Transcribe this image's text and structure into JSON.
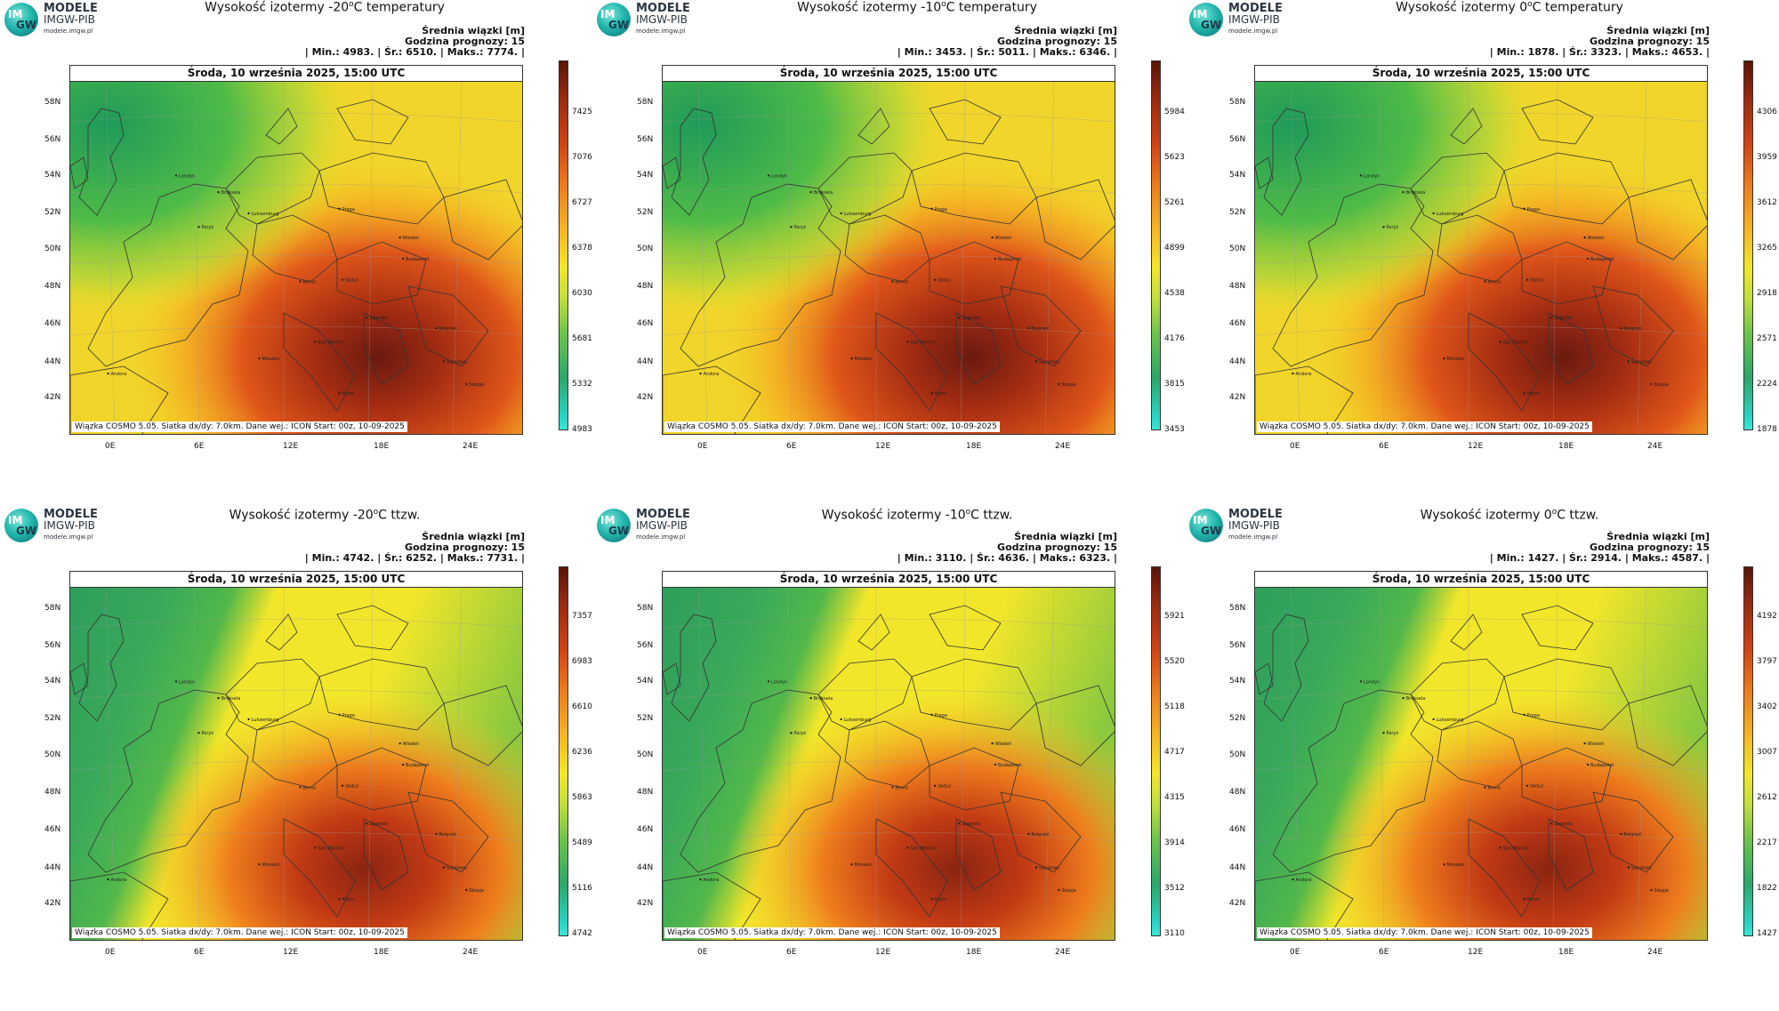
{
  "logo": {
    "l1": "IM",
    "l2": "GW",
    "t1": "MODELE",
    "t2": "IMGW-PIB",
    "t3": "modele.imgw.pl"
  },
  "common": {
    "date": "Środa, 10 września 2025, 15:00 UTC",
    "note": "Wiązka COSMO 5.05. Siatka dx/dy: 7.0km. Dane wej.: ICON Start: 00z, 10-09-2025",
    "info1": "Średnia wiązki [m]",
    "info2": "Godzina prognozy: 15",
    "lats": [
      "58N",
      "56N",
      "54N",
      "52N",
      "50N",
      "48N",
      "46N",
      "44N",
      "42N"
    ],
    "lons": [
      "0E",
      "6E",
      "12E",
      "18E",
      "24E"
    ]
  },
  "panels": [
    {
      "title_pre": "Wysokość izotermy -20",
      "title_sup": "o",
      "title_post": "C temperatury",
      "stats": "| Min.:    4983. | Śr.:    6510. | Maks.:    7774. |",
      "ticks": [
        "7425",
        "7076",
        "6727",
        "6378",
        "6030",
        "5681",
        "5332",
        "4983"
      ],
      "field_type": "warm-east"
    },
    {
      "title_pre": "Wysokość izotermy -10",
      "title_sup": "o",
      "title_post": "C temperatury",
      "stats": "| Min.:    3453. | Śr.:    5011. | Maks.:    6346. |",
      "ticks": [
        "5984",
        "5623",
        "5261",
        "4899",
        "4538",
        "4176",
        "3815",
        "3453"
      ],
      "field_type": "warm-east"
    },
    {
      "title_pre": "Wysokość izotermy 0",
      "title_sup": "o",
      "title_post": "C temperatury",
      "stats": "| Min.:    1878. | Śr.:    3323. | Maks.:    4653. |",
      "ticks": [
        "4306",
        "3959",
        "3612",
        "3265",
        "2918",
        "2571",
        "2224",
        "1878"
      ],
      "field_type": "warm-east"
    },
    {
      "title_pre": "Wysokość izotermy -20",
      "title_sup": "o",
      "title_post": "C ttzw.",
      "stats": "| Min.:    4742. | Śr.:    6252. | Maks.:    7731. |",
      "ticks": [
        "7357",
        "6983",
        "6610",
        "6236",
        "5863",
        "5489",
        "5116",
        "4742"
      ],
      "field_type": "band"
    },
    {
      "title_pre": "Wysokość izotermy -10",
      "title_sup": "o",
      "title_post": "C ttzw.",
      "stats": "| Min.:    3110. | Śr.:    4636. | Maks.:    6323. |",
      "ticks": [
        "5921",
        "5520",
        "5118",
        "4717",
        "4315",
        "3914",
        "3512",
        "3110"
      ],
      "field_type": "band"
    },
    {
      "title_pre": "Wysokość izotermy 0",
      "title_sup": "o",
      "title_post": "C ttzw.",
      "stats": "| Min.:    1427. | Śr.:    2914. | Maks.:    4587. |",
      "ticks": [
        "4192",
        "3797",
        "3402",
        "3007",
        "2612",
        "2217",
        "1822",
        "1427"
      ],
      "field_type": "band"
    }
  ],
  "cities": [
    "Londyn",
    "Bruksela",
    "Luksemburg",
    "Paryż",
    "Praga",
    "Wiedeń",
    "Budapeszt",
    "Berno",
    "Vaduz",
    "Zagrzeb",
    "Belgrad",
    "San Marino",
    "Sarajewo",
    "Monako",
    "Andora",
    "Rzym",
    "Skopje"
  ]
}
